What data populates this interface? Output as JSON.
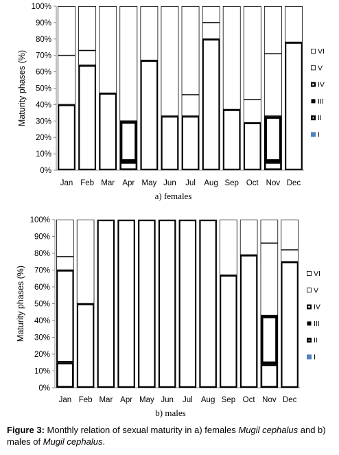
{
  "figure": {
    "caption_label": "Figure 3:",
    "caption_text_1": " Monthly relation of sexual maturity in a) females ",
    "species_1": "Mugil cephalus",
    "caption_text_2": " and b) males of ",
    "species_2": "Mugil cephalus",
    "caption_end": "."
  },
  "chart_data": [
    {
      "type": "stacked-bar",
      "subtitle": "a)  females",
      "ylabel": "Maturity phases (%)",
      "xlabel": "",
      "ylim": [
        0,
        100
      ],
      "yticks": [
        "0%",
        "10%",
        "20%",
        "30%",
        "40%",
        "50%",
        "60%",
        "70%",
        "80%",
        "90%",
        "100%"
      ],
      "categories": [
        "Jan",
        "Feb",
        "Mar",
        "Apr",
        "May",
        "Jun",
        "Jul",
        "Aug",
        "Sep",
        "Oct",
        "Nov",
        "Dec"
      ],
      "legend": [
        "VI",
        "V",
        "IV",
        "III",
        "II",
        "I"
      ],
      "legend_position": "right",
      "grid": false,
      "series": [
        {
          "name": "I",
          "values": [
            0,
            0,
            0,
            0,
            0,
            0,
            0,
            0,
            0,
            0,
            0,
            0
          ]
        },
        {
          "name": "II",
          "values": [
            0,
            0,
            0,
            5,
            0,
            0,
            0,
            0,
            0,
            0,
            5,
            0
          ]
        },
        {
          "name": "III",
          "values": [
            0,
            0,
            0,
            25,
            0,
            0,
            0,
            0,
            0,
            0,
            28,
            0
          ]
        },
        {
          "name": "IV",
          "values": [
            40,
            64,
            47,
            0,
            67,
            33,
            33,
            80,
            37,
            29,
            0,
            78
          ]
        },
        {
          "name": "V",
          "values": [
            30,
            9,
            0,
            0,
            0,
            0,
            13,
            10,
            0,
            14,
            38,
            0
          ]
        },
        {
          "name": "VI",
          "values": [
            30,
            27,
            53,
            70,
            33,
            67,
            54,
            10,
            63,
            57,
            29,
            22
          ]
        }
      ]
    },
    {
      "type": "stacked-bar",
      "subtitle": "b) males",
      "ylabel": "Maturity phases (%)",
      "xlabel": "",
      "ylim": [
        0,
        100
      ],
      "yticks": [
        "0%",
        "10%",
        "20%",
        "30%",
        "40%",
        "50%",
        "60%",
        "70%",
        "80%",
        "90%",
        "100%"
      ],
      "categories": [
        "Jan",
        "Feb",
        "Mar",
        "Apr",
        "May",
        "Jun",
        "Jul",
        "Aug",
        "Sep",
        "Oct",
        "Nov",
        "Dec"
      ],
      "legend": [
        "VI",
        "V",
        "IV",
        "III",
        "II",
        "I"
      ],
      "legend_position": "right",
      "grid": false,
      "series": [
        {
          "name": "I",
          "values": [
            0,
            0,
            0,
            0,
            0,
            0,
            0,
            0,
            0,
            0,
            0,
            0
          ]
        },
        {
          "name": "II",
          "values": [
            15,
            0,
            0,
            0,
            0,
            0,
            0,
            0,
            0,
            0,
            14,
            0
          ]
        },
        {
          "name": "III",
          "values": [
            0,
            0,
            0,
            0,
            0,
            0,
            0,
            0,
            0,
            0,
            29,
            0
          ]
        },
        {
          "name": "IV",
          "values": [
            55,
            50,
            100,
            100,
            100,
            100,
            100,
            100,
            67,
            79,
            0,
            75
          ]
        },
        {
          "name": "V",
          "values": [
            8,
            0,
            0,
            0,
            0,
            0,
            0,
            0,
            0,
            0,
            43,
            7
          ]
        },
        {
          "name": "VI",
          "values": [
            22,
            50,
            0,
            0,
            0,
            0,
            0,
            0,
            33,
            21,
            14,
            18
          ]
        }
      ]
    }
  ]
}
